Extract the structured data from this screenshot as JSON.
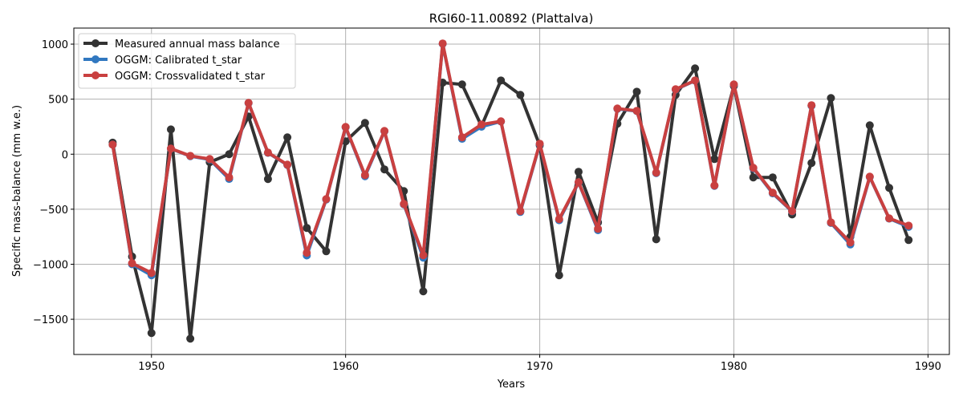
{
  "chart_data": {
    "type": "line",
    "title": "RGI60-11.00892 (Plattalva)",
    "xlabel": "Years",
    "ylabel": "Specific mass-balance (mm w.e.)",
    "xlim": [
      1946.0,
      1991.1
    ],
    "ylim": [
      -1820,
      1146
    ],
    "xticks": [
      1950,
      1960,
      1970,
      1980,
      1990
    ],
    "yticks": [
      -1500,
      -1000,
      -500,
      0,
      500,
      1000
    ],
    "ytick_labels": [
      "−1500",
      "−1000",
      "−500",
      "0",
      "500",
      "1000"
    ],
    "grid": true,
    "legend_position": "top-left",
    "x": [
      1948,
      1949,
      1950,
      1951,
      1952,
      1953,
      1954,
      1955,
      1956,
      1957,
      1958,
      1959,
      1960,
      1961,
      1962,
      1963,
      1964,
      1965,
      1966,
      1967,
      1968,
      1969,
      1970,
      1971,
      1972,
      1973,
      1974,
      1975,
      1976,
      1977,
      1978,
      1979,
      1980,
      1981,
      1982,
      1983,
      1984,
      1985,
      1986,
      1987,
      1988,
      1989
    ],
    "series": [
      {
        "name": "Measured annual mass balance",
        "color": "#333333",
        "values": [
          105,
          -930,
          -1625,
          225,
          -1676,
          -73,
          0,
          343,
          -226,
          153,
          -670,
          -882,
          117,
          284,
          -138,
          -335,
          -1246,
          650,
          634,
          255,
          670,
          539,
          80,
          -1100,
          -160,
          -620,
          277,
          568,
          -773,
          539,
          780,
          -44,
          620,
          -211,
          -211,
          -547,
          -80,
          510,
          -751,
          262,
          -306,
          -780
        ]
      },
      {
        "name": "OGGM: Calibrated t_star",
        "color": "#3178c0",
        "values": [
          87,
          -1000,
          -1100,
          50,
          -18,
          -48,
          -225,
          463,
          12,
          -98,
          -920,
          -412,
          244,
          -200,
          208,
          -456,
          -940,
          1003,
          140,
          250,
          297,
          -525,
          90,
          -600,
          -258,
          -690,
          412,
          392,
          -172,
          587,
          668,
          -288,
          631,
          -128,
          -356,
          -520,
          440,
          -625,
          -820,
          -208,
          -585,
          -660
        ]
      },
      {
        "name": "OGGM: Crossvalidated t_star",
        "color": "#c94040",
        "values": [
          87,
          -991,
          -1079,
          51,
          -15,
          -44,
          -211,
          466,
          15,
          -95,
          -896,
          -408,
          248,
          -190,
          211,
          -452,
          -918,
          1006,
          153,
          270,
          299,
          -517,
          95,
          -590,
          -255,
          -678,
          415,
          394,
          -168,
          590,
          670,
          -284,
          634,
          -124,
          -350,
          -517,
          445,
          -620,
          -802,
          -204,
          -583,
          -649
        ]
      }
    ]
  }
}
